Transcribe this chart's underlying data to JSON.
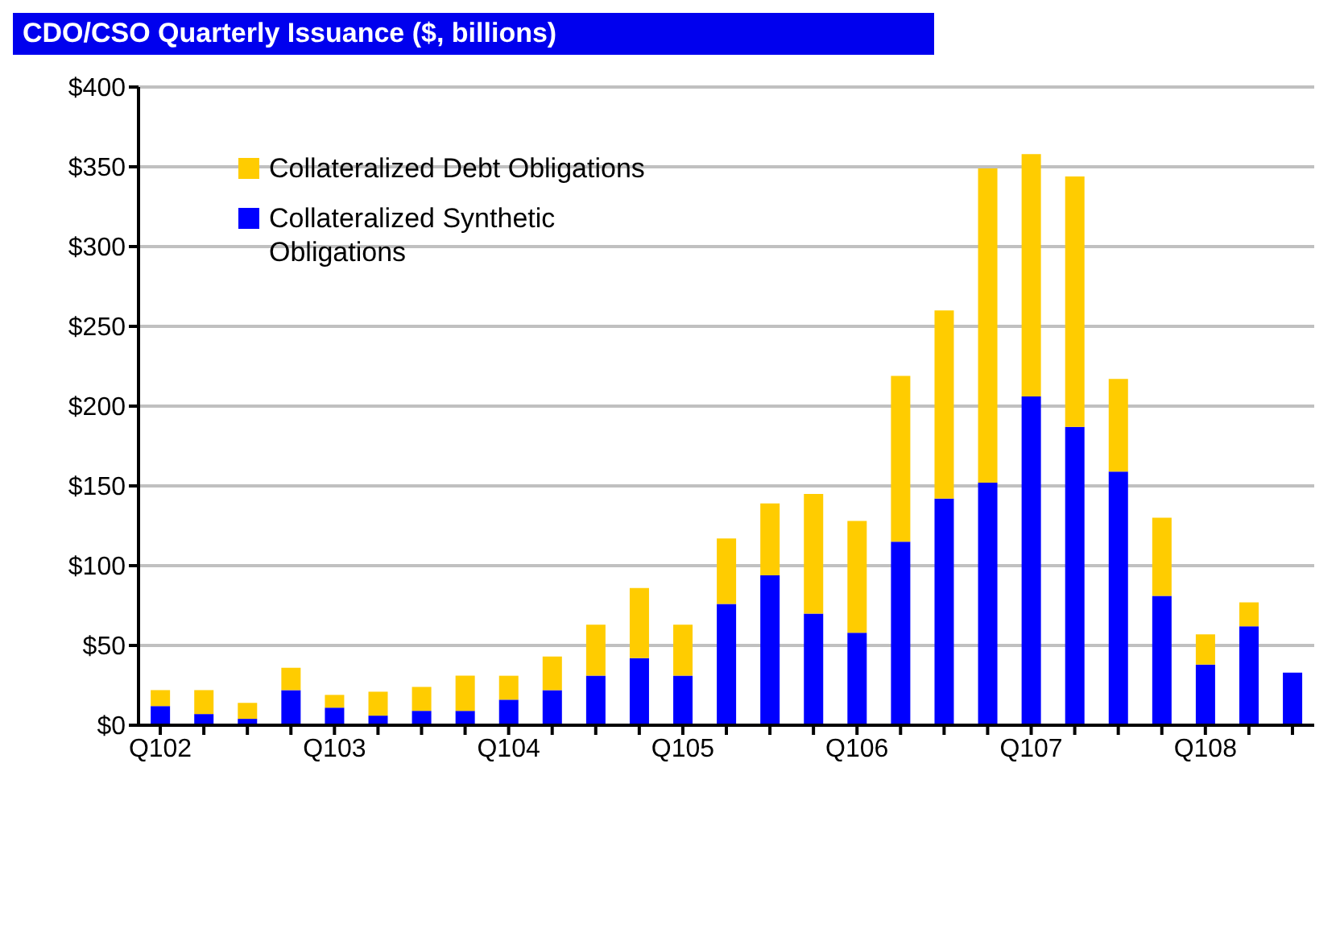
{
  "chart_data": {
    "type": "bar",
    "title": "CDO/CSO Quarterly Issuance ($, billions)",
    "categories": [
      "Q102",
      null,
      null,
      null,
      "Q103",
      null,
      null,
      null,
      "Q104",
      null,
      null,
      null,
      "Q105",
      null,
      null,
      null,
      "Q106",
      null,
      null,
      null,
      "Q107",
      null,
      null,
      null,
      "Q108",
      null,
      null
    ],
    "stacked": true,
    "series": [
      {
        "name": "Collateralized Synthetic Obligations",
        "color": "#0000ff",
        "values": [
          12,
          7,
          4,
          22,
          11,
          6,
          9,
          9,
          16,
          22,
          31,
          42,
          31,
          76,
          94,
          70,
          58,
          115,
          142,
          152,
          206,
          187,
          159,
          81,
          38,
          62,
          33
        ]
      },
      {
        "name": "Collateralized Debt Obligations",
        "color": "#ffcc00",
        "values": [
          10,
          15,
          10,
          14,
          8,
          15,
          15,
          22,
          15,
          21,
          32,
          44,
          32,
          41,
          45,
          75,
          70,
          104,
          118,
          197,
          152,
          157,
          58,
          49,
          19,
          15,
          0
        ]
      }
    ],
    "ylim": [
      0,
      400
    ],
    "yticks": [
      {
        "value": 0,
        "label": "$0"
      },
      {
        "value": 50,
        "label": "$50"
      },
      {
        "value": 100,
        "label": "$100"
      },
      {
        "value": 150,
        "label": "$150"
      },
      {
        "value": 200,
        "label": "$200"
      },
      {
        "value": 250,
        "label": "$250"
      },
      {
        "value": 300,
        "label": "$300"
      },
      {
        "value": 350,
        "label": "$350"
      },
      {
        "value": 400,
        "label": "$400"
      }
    ],
    "grid": "y",
    "legend": "top left"
  }
}
